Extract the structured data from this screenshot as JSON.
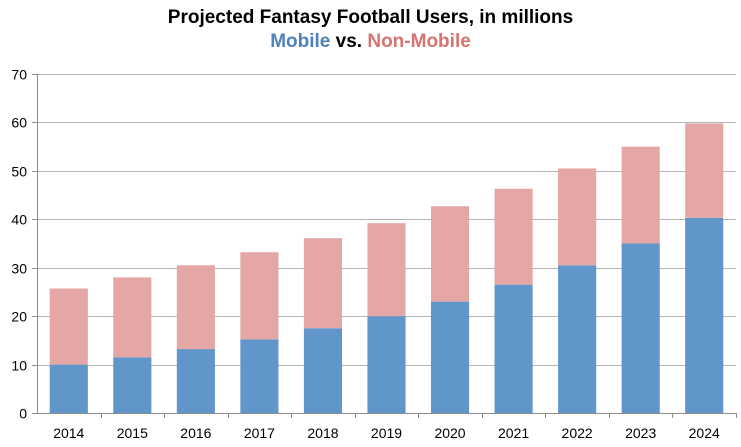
{
  "colors": {
    "mobile": "#6196CA",
    "non_mobile": "#E4A7A6",
    "mobile_text": "#4F81BD",
    "non_mobile_text": "#D9736F",
    "grid": "#B5B5B5",
    "axis": "#8C8C8C"
  },
  "chart_data": {
    "type": "bar",
    "stacked": true,
    "title": "Projected Fantasy Football Users, in millions",
    "subtitle": {
      "series1": "Mobile",
      "connector": " vs. ",
      "series2": "Non-Mobile"
    },
    "categories": [
      "2014",
      "2015",
      "2016",
      "2017",
      "2018",
      "2019",
      "2020",
      "2021",
      "2022",
      "2023",
      "2024"
    ],
    "series": [
      {
        "name": "Mobile",
        "values": [
          10,
          11.5,
          13.2,
          15.2,
          17.5,
          20,
          23,
          26.5,
          30.5,
          35,
          40.3
        ]
      },
      {
        "name": "Non-Mobile",
        "values": [
          15.7,
          16.5,
          17.3,
          18,
          18.6,
          19.2,
          19.7,
          19.8,
          20,
          20,
          19.5
        ]
      }
    ],
    "ylim": [
      0,
      70
    ],
    "yticks": [
      "0",
      "10",
      "20",
      "30",
      "40",
      "50",
      "60",
      "70"
    ],
    "ytick_values": [
      0,
      10,
      20,
      30,
      40,
      50,
      60,
      70
    ],
    "grid": true,
    "xlabel": "",
    "ylabel": ""
  }
}
